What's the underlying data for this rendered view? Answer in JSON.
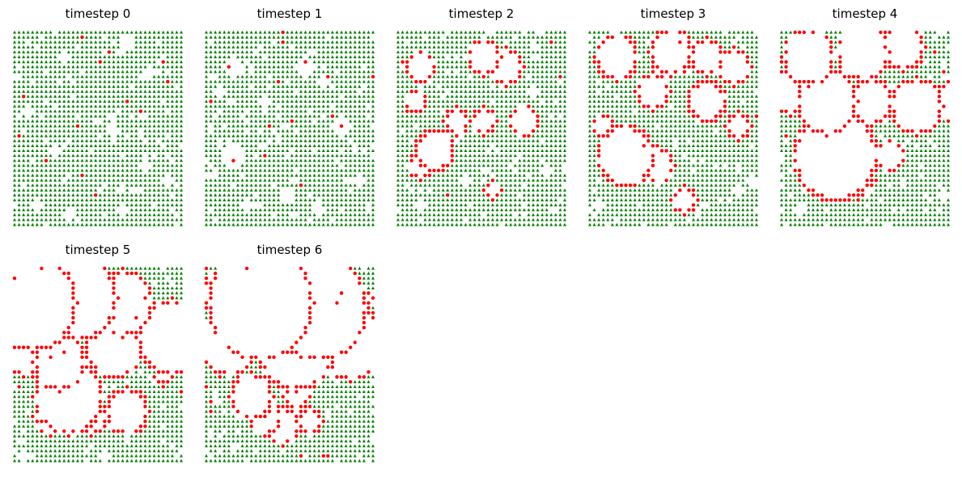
{
  "chart_data": [
    {
      "type": "scatter",
      "title": "timestep 0",
      "grid_size": [
        38,
        40
      ],
      "legend": "none",
      "axes": "off",
      "colors": {
        "tree": "#008000",
        "fire": "#ff0000"
      },
      "fire_points": [
        [
          15,
          1
        ],
        [
          21,
          4
        ],
        [
          19,
          6
        ],
        [
          33,
          6
        ],
        [
          34,
          10
        ],
        [
          2,
          13
        ],
        [
          25,
          14
        ],
        [
          28,
          16
        ],
        [
          14,
          19
        ],
        [
          1,
          21
        ],
        [
          7,
          26
        ],
        [
          15,
          29
        ],
        [
          18,
          33
        ]
      ],
      "empty_patches": [
        [
          25,
          2,
          1.5
        ],
        [
          11,
          5,
          1
        ],
        [
          30,
          8,
          1
        ],
        [
          3,
          16,
          1
        ],
        [
          22,
          20,
          1
        ],
        [
          9,
          24,
          1
        ],
        [
          29,
          27,
          1
        ],
        [
          34,
          30,
          1
        ],
        [
          5,
          35,
          1
        ],
        [
          12,
          37,
          1
        ],
        [
          24,
          36,
          1
        ]
      ],
      "burned_patches": []
    },
    {
      "type": "scatter",
      "title": "timestep 1",
      "grid_size": [
        38,
        40
      ],
      "legend": "none",
      "axes": "off",
      "colors": {
        "tree": "#008000",
        "fire": "#ff0000"
      },
      "fire_points": [
        [
          17,
          0
        ],
        [
          17,
          2
        ],
        [
          5,
          7
        ],
        [
          22,
          6
        ],
        [
          16,
          10
        ],
        [
          27,
          9
        ],
        [
          1,
          14
        ],
        [
          19,
          18
        ],
        [
          30,
          19
        ],
        [
          28,
          17
        ],
        [
          14,
          19
        ],
        [
          6,
          26
        ],
        [
          13,
          25
        ],
        [
          21,
          31
        ],
        [
          37,
          9
        ]
      ],
      "empty_patches": [
        [
          6,
          7,
          2
        ],
        [
          22,
          7,
          2
        ],
        [
          3,
          12,
          1
        ],
        [
          26,
          10,
          1
        ],
        [
          30,
          19,
          2
        ],
        [
          6,
          25,
          2.5
        ],
        [
          18,
          33,
          1.5
        ],
        [
          13,
          14,
          1
        ],
        [
          34,
          30,
          1
        ],
        [
          9,
          35,
          1
        ],
        [
          25,
          36,
          1
        ]
      ],
      "burned_patches": []
    },
    {
      "type": "scatter",
      "title": "timestep 2",
      "grid_size": [
        38,
        40
      ],
      "legend": "none",
      "axes": "off",
      "colors": {
        "tree": "#008000",
        "fire": "#ff0000"
      },
      "fire_points": [
        [
          36,
          9
        ],
        [
          2,
          16
        ],
        [
          4,
          12
        ],
        [
          1,
          6
        ],
        [
          34,
          2
        ],
        [
          20,
          2
        ],
        [
          11,
          33
        ]
      ],
      "empty_patches": [
        [
          30,
          12,
          1
        ],
        [
          33,
          28,
          1
        ],
        [
          15,
          30,
          1
        ],
        [
          5,
          35,
          1
        ]
      ],
      "burned_patches": [
        [
          5,
          7,
          3.5
        ],
        [
          19,
          5,
          4
        ],
        [
          24,
          7,
          4
        ],
        [
          4,
          14,
          2.5
        ],
        [
          13,
          18,
          3
        ],
        [
          19,
          18,
          3
        ],
        [
          28,
          18,
          3.5
        ],
        [
          8,
          24,
          4.5
        ],
        [
          5,
          27,
          3
        ],
        [
          21,
          32,
          2
        ]
      ]
    },
    {
      "type": "scatter",
      "title": "timestep 3",
      "grid_size": [
        38,
        40
      ],
      "legend": "none",
      "axes": "off",
      "colors": {
        "tree": "#008000",
        "fire": "#ff0000"
      },
      "fire_points": [
        [
          1,
          6
        ],
        [
          2,
          8
        ],
        [
          20,
          2
        ],
        [
          23,
          3
        ],
        [
          14,
          16
        ],
        [
          10,
          20
        ],
        [
          12,
          23
        ],
        [
          18,
          28
        ],
        [
          37,
          17
        ],
        [
          34,
          10
        ],
        [
          4,
          20
        ]
      ],
      "empty_patches": [
        [
          33,
          32,
          1
        ],
        [
          2,
          35,
          1
        ],
        [
          36,
          30,
          1
        ]
      ],
      "burned_patches": [
        [
          6,
          5,
          5
        ],
        [
          18,
          4,
          5
        ],
        [
          26,
          5,
          4
        ],
        [
          32,
          7,
          4
        ],
        [
          14,
          12,
          4
        ],
        [
          26,
          14,
          4.5
        ],
        [
          33,
          19,
          3
        ],
        [
          8,
          25,
          6.5
        ],
        [
          15,
          27,
          4
        ],
        [
          21,
          34,
          3
        ],
        [
          3,
          19,
          2.5
        ]
      ]
    },
    {
      "type": "scatter",
      "title": "timestep 4",
      "grid_size": [
        38,
        40
      ],
      "legend": "none",
      "axes": "off",
      "colors": {
        "tree": "#008000",
        "fire": "#ff0000"
      },
      "fire_points": [
        [
          0,
          6
        ],
        [
          1,
          21
        ],
        [
          34,
          4
        ],
        [
          36,
          8
        ],
        [
          6,
          10
        ],
        [
          19,
          10
        ],
        [
          25,
          12
        ]
      ],
      "empty_patches": [
        [
          36,
          33,
          1
        ],
        [
          4,
          36,
          1
        ]
      ],
      "burned_patches": [
        [
          6,
          5,
          6
        ],
        [
          18,
          4,
          6
        ],
        [
          27,
          3,
          5
        ],
        [
          10,
          14,
          7
        ],
        [
          20,
          14,
          5
        ],
        [
          30,
          15,
          6
        ],
        [
          37,
          14,
          4
        ],
        [
          12,
          25,
          9.5
        ],
        [
          24,
          25,
          3.5
        ],
        [
          17,
          30,
          4
        ],
        [
          2,
          12,
          5
        ]
      ]
    },
    {
      "type": "scatter",
      "title": "timestep 5",
      "grid_size": [
        38,
        40
      ],
      "legend": "none",
      "axes": "off",
      "colors": {
        "tree": "#008000",
        "fire": "#ff0000"
      },
      "fire_points": [
        [
          6,
          0
        ],
        [
          0,
          2
        ],
        [
          29,
          6
        ],
        [
          30,
          9
        ],
        [
          27,
          10
        ],
        [
          16,
          14
        ],
        [
          18,
          14
        ],
        [
          11,
          17
        ],
        [
          8,
          18
        ],
        [
          4,
          22
        ],
        [
          1,
          24
        ],
        [
          33,
          23
        ],
        [
          37,
          25
        ],
        [
          37,
          21
        ]
      ],
      "empty_patches": [
        [
          20,
          38,
          1
        ],
        [
          2,
          38,
          1
        ]
      ],
      "burned_patches": [
        [
          4,
          7,
          10
        ],
        [
          14,
          6,
          9
        ],
        [
          24,
          7,
          7
        ],
        [
          35,
          14,
          8
        ],
        [
          10,
          19,
          6
        ],
        [
          2,
          16,
          6
        ],
        [
          22,
          16,
          6.5
        ],
        [
          12,
          26,
          8
        ],
        [
          25,
          29,
          5
        ],
        [
          8,
          30,
          4
        ],
        [
          17,
          30,
          4
        ],
        [
          33,
          22,
          2
        ]
      ]
    },
    {
      "type": "scatter",
      "title": "timestep 6",
      "grid_size": [
        38,
        40
      ],
      "legend": "none",
      "axes": "off",
      "colors": {
        "tree": "#008000",
        "fire": "#ff0000"
      },
      "fire_points": [
        [
          0,
          0
        ],
        [
          9,
          0
        ],
        [
          30,
          5
        ],
        [
          29,
          7
        ],
        [
          8,
          18
        ],
        [
          3,
          22
        ],
        [
          0,
          24
        ],
        [
          1,
          27
        ],
        [
          1,
          29
        ],
        [
          20,
          24
        ],
        [
          22,
          24
        ],
        [
          26,
          38
        ],
        [
          27,
          38
        ],
        [
          21,
          38
        ]
      ],
      "empty_patches": [],
      "burned_patches": [
        [
          12,
          7,
          12
        ],
        [
          25,
          8,
          11
        ],
        [
          5,
          15,
          7
        ],
        [
          20,
          16,
          9
        ],
        [
          32,
          15,
          8
        ],
        [
          10,
          26,
          5
        ],
        [
          20,
          26,
          3
        ],
        [
          13,
          30,
          4
        ],
        [
          17,
          32,
          4
        ],
        [
          23,
          31,
          3
        ],
        [
          4,
          5,
          5
        ],
        [
          35,
          6,
          2
        ]
      ]
    }
  ]
}
